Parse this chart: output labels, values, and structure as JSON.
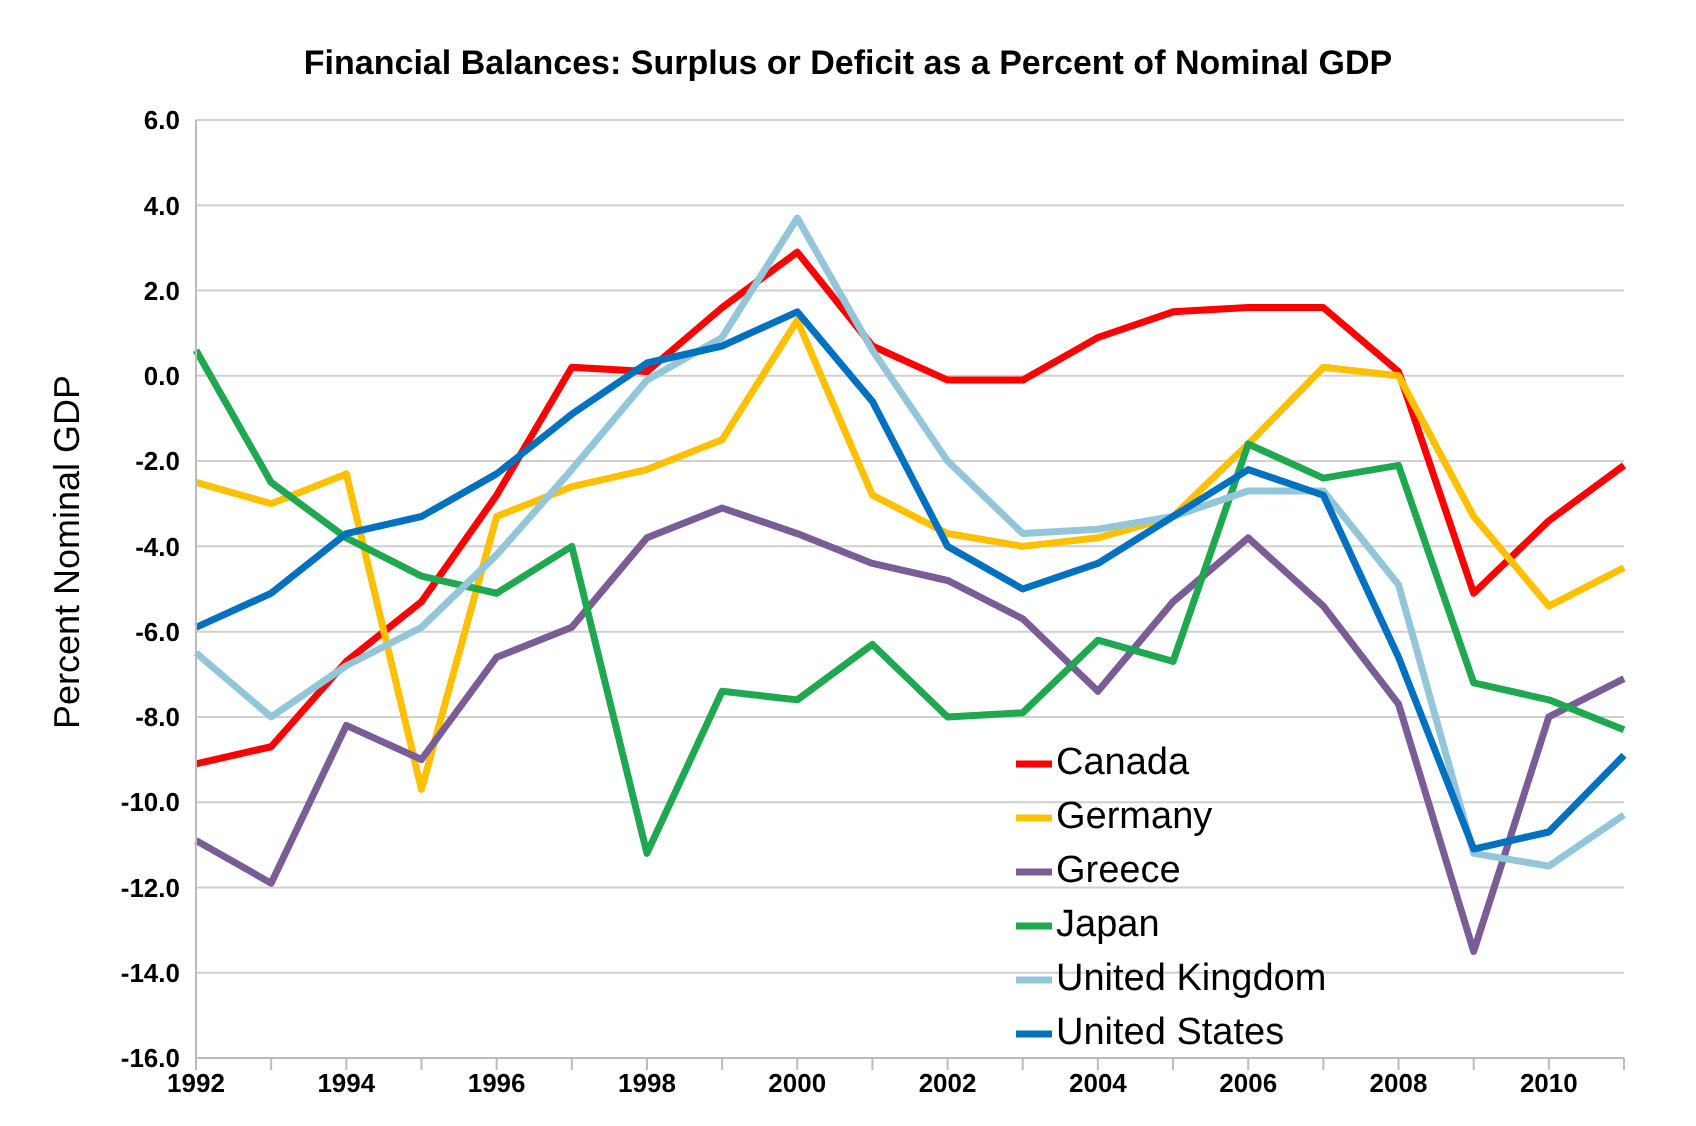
{
  "chart_data": {
    "type": "line",
    "title": "Financial Balances: Surplus or Deficit as a Percent of Nominal GDP",
    "ylabel": "Percent Nominal GDP",
    "categories": [
      "1992",
      null,
      "1994",
      null,
      "1996",
      null,
      "1998",
      null,
      "2000",
      null,
      "2002",
      null,
      "2004",
      null,
      "2006",
      null,
      "2008",
      null,
      "2010",
      null
    ],
    "series": [
      {
        "name": "Canada",
        "color": "#ff0000",
        "values": [
          -9.1,
          -8.7,
          -6.7,
          -5.3,
          -2.8,
          0.2,
          0.1,
          1.6,
          2.9,
          0.7,
          -0.1,
          -0.1,
          0.9,
          1.5,
          1.6,
          1.6,
          0.1,
          -5.1,
          -3.4,
          -2.1
        ]
      },
      {
        "name": "Germany",
        "color": "#ffc000",
        "values": [
          -2.5,
          -3.0,
          -2.3,
          -9.7,
          -3.3,
          -2.6,
          -2.2,
          -1.5,
          1.3,
          -2.8,
          -3.7,
          -4.0,
          -3.8,
          -3.3,
          -1.6,
          0.2,
          0.0,
          -3.3,
          -5.4,
          -4.5
        ]
      },
      {
        "name": "Greece",
        "color": "#7a5c96",
        "values": [
          -10.9,
          -11.9,
          -8.2,
          -9.0,
          -6.6,
          -5.9,
          -3.8,
          -3.1,
          -3.7,
          -4.4,
          -4.8,
          -5.7,
          -7.4,
          -5.3,
          -3.8,
          -5.4,
          -7.7,
          -13.5,
          -8.0,
          -7.1
        ]
      },
      {
        "name": "Japan",
        "color": "#1fa84f",
        "values": [
          0.6,
          -2.5,
          -3.8,
          -4.7,
          -5.1,
          -4.0,
          -11.2,
          -7.4,
          -7.6,
          -6.3,
          -8.0,
          -7.9,
          -6.2,
          -6.7,
          -1.6,
          -2.4,
          -2.1,
          -7.2,
          -7.6,
          -8.3
        ]
      },
      {
        "name": "United Kingdom",
        "color": "#93c6d8",
        "values": [
          -6.5,
          -8.0,
          -6.8,
          -5.9,
          -4.2,
          -2.2,
          -0.1,
          0.9,
          3.7,
          0.6,
          -2.0,
          -3.7,
          -3.6,
          -3.3,
          -2.7,
          -2.7,
          -4.9,
          -11.2,
          -11.5,
          -10.3
        ]
      },
      {
        "name": "United States",
        "color": "#0070c0",
        "values": [
          -5.9,
          -5.1,
          -3.7,
          -3.3,
          -2.3,
          -0.9,
          0.3,
          0.7,
          1.5,
          -0.6,
          -4.0,
          -5.0,
          -4.4,
          -3.3,
          -2.2,
          -2.8,
          -6.6,
          -11.1,
          -10.7,
          -8.9
        ]
      }
    ],
    "ylim": [
      -16,
      6
    ],
    "yticks": [
      {
        "value": -16,
        "label": "-16.0"
      },
      {
        "value": -14,
        "label": "-14.0"
      },
      {
        "value": -12,
        "label": "-12.0"
      },
      {
        "value": -10,
        "label": "-10.0"
      },
      {
        "value": -8,
        "label": "-8.0"
      },
      {
        "value": -6,
        "label": "-6.0"
      },
      {
        "value": -4,
        "label": "-4.0"
      },
      {
        "value": -2,
        "label": "-2.0"
      },
      {
        "value": 0,
        "label": "0.0"
      },
      {
        "value": 2,
        "label": "2.0"
      },
      {
        "value": 4,
        "label": "4.0"
      },
      {
        "value": 6,
        "label": "6.0"
      }
    ],
    "grid": "y",
    "legend": "bottom",
    "marker": "none",
    "line_style": "solid"
  }
}
